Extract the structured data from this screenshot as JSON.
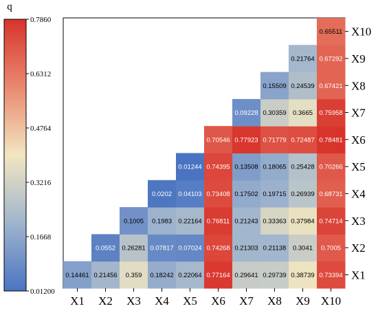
{
  "chart_data": {
    "type": "heatmap",
    "title": "",
    "x_categories": [
      "X1",
      "X2",
      "X3",
      "X4",
      "X5",
      "X6",
      "X7",
      "X8",
      "X9",
      "X10"
    ],
    "y_categories": [
      "X1",
      "X2",
      "X3",
      "X4",
      "X5",
      "X6",
      "X7",
      "X8",
      "X9",
      "X10"
    ],
    "colorbar": {
      "label": "q",
      "min": 0.012,
      "max": 0.786,
      "ticks": [
        "0.7860",
        "0.6312",
        "0.4764",
        "0.3216",
        "0.1668",
        "0.01200"
      ],
      "colors": [
        "#4a74c2",
        "#9fb4cd",
        "#f2e6c0",
        "#e9896f",
        "#d8332c"
      ]
    },
    "cells": [
      {
        "x": "X1",
        "y": "X1",
        "value": 0.14461,
        "label": "0.14461"
      },
      {
        "x": "X2",
        "y": "X1",
        "value": 0.21456,
        "label": "0.21456"
      },
      {
        "x": "X3",
        "y": "X1",
        "value": 0.359,
        "label": "0.359"
      },
      {
        "x": "X4",
        "y": "X1",
        "value": 0.18242,
        "label": "0.18242"
      },
      {
        "x": "X5",
        "y": "X1",
        "value": 0.22064,
        "label": "0.22064"
      },
      {
        "x": "X6",
        "y": "X1",
        "value": 0.77164,
        "label": "0.77164"
      },
      {
        "x": "X7",
        "y": "X1",
        "value": 0.29641,
        "label": "0.29641"
      },
      {
        "x": "X8",
        "y": "X1",
        "value": 0.29739,
        "label": "0.29739"
      },
      {
        "x": "X9",
        "y": "X1",
        "value": 0.38739,
        "label": "0.38739"
      },
      {
        "x": "X10",
        "y": "X1",
        "value": 0.73394,
        "label": "0.73394"
      },
      {
        "x": "X2",
        "y": "X2",
        "value": 0.0552,
        "label": "0.0552"
      },
      {
        "x": "X3",
        "y": "X2",
        "value": 0.26281,
        "label": "0.26281"
      },
      {
        "x": "X4",
        "y": "X2",
        "value": 0.07817,
        "label": "0.07817"
      },
      {
        "x": "X5",
        "y": "X2",
        "value": 0.07024,
        "label": "0.07024"
      },
      {
        "x": "X6",
        "y": "X2",
        "value": 0.74268,
        "label": "0.74268"
      },
      {
        "x": "X7",
        "y": "X2",
        "value": 0.21303,
        "label": "0.21303"
      },
      {
        "x": "X8",
        "y": "X2",
        "value": 0.21138,
        "label": "0.21138"
      },
      {
        "x": "X9",
        "y": "X2",
        "value": 0.3041,
        "label": "0.3041"
      },
      {
        "x": "X10",
        "y": "X2",
        "value": 0.7005,
        "label": "0.7005"
      },
      {
        "x": "X3",
        "y": "X3",
        "value": 0.1005,
        "label": "0.1005"
      },
      {
        "x": "X4",
        "y": "X3",
        "value": 0.1983,
        "label": "0.1983"
      },
      {
        "x": "X5",
        "y": "X3",
        "value": 0.22164,
        "label": "0.22164"
      },
      {
        "x": "X6",
        "y": "X3",
        "value": 0.76811,
        "label": "0.76811"
      },
      {
        "x": "X7",
        "y": "X3",
        "value": 0.21243,
        "label": "0.21243"
      },
      {
        "x": "X8",
        "y": "X3",
        "value": 0.33363,
        "label": "0.33363"
      },
      {
        "x": "X9",
        "y": "X3",
        "value": 0.37984,
        "label": "0.37984"
      },
      {
        "x": "X10",
        "y": "X3",
        "value": 0.74714,
        "label": "0.74714"
      },
      {
        "x": "X4",
        "y": "X4",
        "value": 0.0202,
        "label": "0.0202"
      },
      {
        "x": "X5",
        "y": "X4",
        "value": 0.04103,
        "label": "0.04103"
      },
      {
        "x": "X6",
        "y": "X4",
        "value": 0.73408,
        "label": "0.73408"
      },
      {
        "x": "X7",
        "y": "X4",
        "value": 0.17502,
        "label": "0.17502"
      },
      {
        "x": "X8",
        "y": "X4",
        "value": 0.19715,
        "label": "0.19715"
      },
      {
        "x": "X9",
        "y": "X4",
        "value": 0.26939,
        "label": "0.26939"
      },
      {
        "x": "X10",
        "y": "X4",
        "value": 0.68731,
        "label": "0.68731"
      },
      {
        "x": "X5",
        "y": "X5",
        "value": 0.01244,
        "label": "0.01244"
      },
      {
        "x": "X6",
        "y": "X5",
        "value": 0.74395,
        "label": "0.74395"
      },
      {
        "x": "X7",
        "y": "X5",
        "value": 0.13508,
        "label": "0.13508"
      },
      {
        "x": "X8",
        "y": "X5",
        "value": 0.18065,
        "label": "0.18065"
      },
      {
        "x": "X9",
        "y": "X5",
        "value": 0.25428,
        "label": "0.25428"
      },
      {
        "x": "X10",
        "y": "X5",
        "value": 0.70266,
        "label": "0.70266"
      },
      {
        "x": "X6",
        "y": "X6",
        "value": 0.70546,
        "label": "0.70546"
      },
      {
        "x": "X7",
        "y": "X6",
        "value": 0.77923,
        "label": "0.77923"
      },
      {
        "x": "X8",
        "y": "X6",
        "value": 0.71779,
        "label": "0.71779"
      },
      {
        "x": "X9",
        "y": "X6",
        "value": 0.72487,
        "label": "0.72487"
      },
      {
        "x": "X10",
        "y": "X6",
        "value": 0.78481,
        "label": "0.78481"
      },
      {
        "x": "X7",
        "y": "X7",
        "value": 0.09228,
        "label": "0.09228"
      },
      {
        "x": "X8",
        "y": "X7",
        "value": 0.30359,
        "label": "0.30359"
      },
      {
        "x": "X9",
        "y": "X7",
        "value": 0.3665,
        "label": "0.3665"
      },
      {
        "x": "X10",
        "y": "X7",
        "value": 0.75958,
        "label": "0.75958"
      },
      {
        "x": "X8",
        "y": "X8",
        "value": 0.15509,
        "label": "0.15509"
      },
      {
        "x": "X9",
        "y": "X8",
        "value": 0.24539,
        "label": "0.24539"
      },
      {
        "x": "X10",
        "y": "X8",
        "value": 0.67421,
        "label": "0.67421"
      },
      {
        "x": "X9",
        "y": "X9",
        "value": 0.21764,
        "label": "0.21764"
      },
      {
        "x": "X10",
        "y": "X9",
        "value": 0.67292,
        "label": "0.67292"
      },
      {
        "x": "X10",
        "y": "X10",
        "value": 0.65511,
        "label": "0.65511"
      }
    ]
  }
}
